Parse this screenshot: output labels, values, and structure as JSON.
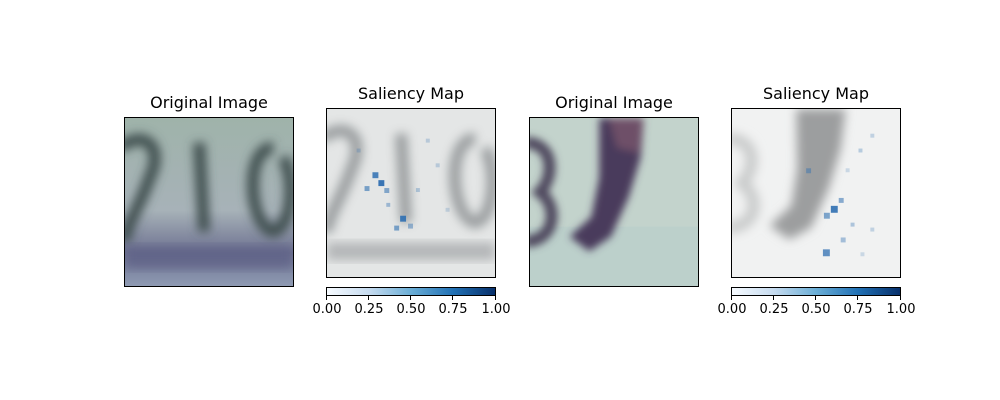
{
  "figure": {
    "panels": [
      {
        "title": "Original Image",
        "kind": "image",
        "content": "blurred house-number digits"
      },
      {
        "title": "Saliency Map",
        "kind": "saliency",
        "colorbar": {
          "cmap": "Blues",
          "ticks": [
            "0.00",
            "0.25",
            "0.50",
            "0.75",
            "1.00"
          ]
        }
      },
      {
        "title": "Original Image",
        "kind": "image",
        "content": "blurred digit with finger"
      },
      {
        "title": "Saliency Map",
        "kind": "saliency",
        "colorbar": {
          "cmap": "Blues",
          "ticks": [
            "0.00",
            "0.25",
            "0.50",
            "0.75",
            "1.00"
          ]
        }
      }
    ]
  },
  "chart_data": [
    {
      "type": "heatmap",
      "title": "Original Image"
    },
    {
      "type": "heatmap",
      "title": "Saliency Map",
      "colorbar_range": [
        0,
        1
      ],
      "colorbar_ticks": [
        0,
        0.25,
        0.5,
        0.75,
        1.0
      ],
      "colormap": "Blues"
    },
    {
      "type": "heatmap",
      "title": "Original Image"
    },
    {
      "type": "heatmap",
      "title": "Saliency Map",
      "colorbar_range": [
        0,
        1
      ],
      "colorbar_ticks": [
        0,
        0.25,
        0.5,
        0.75,
        1.0
      ],
      "colormap": "Blues"
    }
  ]
}
